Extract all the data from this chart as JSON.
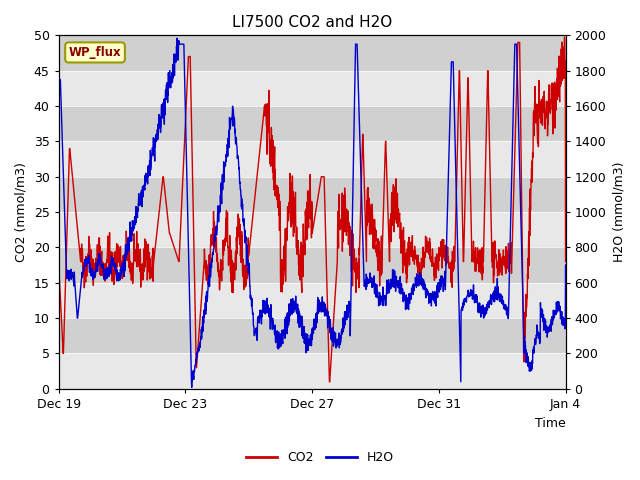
{
  "title": "LI7500 CO2 and H2O",
  "xlabel": "Time",
  "ylabel_left": "CO2 (mmol/m3)",
  "ylabel_right": "H2O (mmol/m3)",
  "ylim_left": [
    0,
    50
  ],
  "ylim_right": [
    0,
    2000
  ],
  "yticks_left": [
    0,
    5,
    10,
    15,
    20,
    25,
    30,
    35,
    40,
    45,
    50
  ],
  "yticks_right": [
    0,
    200,
    400,
    600,
    800,
    1000,
    1200,
    1400,
    1600,
    1800,
    2000
  ],
  "xtick_labels": [
    "Dec 19",
    "Dec 23",
    "Dec 27",
    "Dec 31",
    "Jan 4"
  ],
  "xtick_days": [
    0,
    4,
    8,
    12,
    16
  ],
  "co2_color": "#cc0000",
  "h2o_color": "#0000cc",
  "plot_bg": "#ffffff",
  "fig_bg": "#ffffff",
  "legend_co2": "CO2",
  "legend_h2o": "H2O",
  "wp_flux_label": "WP_flux",
  "wp_flux_bg": "#ffffcc",
  "wp_flux_border": "#999900",
  "title_fontsize": 11,
  "label_fontsize": 9,
  "tick_fontsize": 9,
  "legend_fontsize": 9,
  "linewidth": 1.0,
  "figsize": [
    6.4,
    4.8
  ],
  "dpi": 100,
  "band_light": "#e8e8e8",
  "band_dark": "#d0d0d0"
}
